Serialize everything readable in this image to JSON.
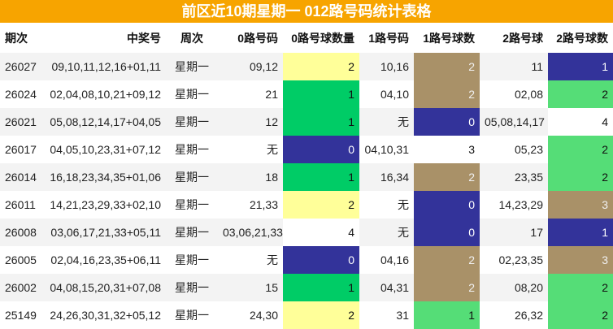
{
  "title": "前区近10期星期一 012路号码统计表格",
  "headers": [
    "期次",
    "中奖号",
    "周次",
    "0路号码",
    "0路号球数量",
    "1路号码",
    "1路号球数",
    "2路号球",
    "2路号球数"
  ],
  "rows": [
    [
      "26027",
      "09,10,11,12,16+01,11",
      "星期一",
      "09,12",
      "2",
      "10,16",
      "2",
      "11",
      "1"
    ],
    [
      "26024",
      "02,04,08,10,21+09,12",
      "星期一",
      "21",
      "1",
      "04,10",
      "2",
      "02,08",
      "2"
    ],
    [
      "26021",
      "05,08,12,14,17+04,05",
      "星期一",
      "12",
      "1",
      "无",
      "0",
      "05,08,14,17",
      "4"
    ],
    [
      "26017",
      "04,05,10,23,31+07,12",
      "星期一",
      "无",
      "0",
      "04,10,31",
      "3",
      "05,23",
      "2"
    ],
    [
      "26014",
      "16,18,23,34,35+01,06",
      "星期一",
      "18",
      "1",
      "16,34",
      "2",
      "23,35",
      "2"
    ],
    [
      "26011",
      "14,21,23,29,33+02,10",
      "星期一",
      "21,33",
      "2",
      "无",
      "0",
      "14,23,29",
      "3"
    ],
    [
      "26008",
      "03,06,17,21,33+05,11",
      "星期一",
      "03,06,21,33",
      "4",
      "无",
      "0",
      "17",
      "1"
    ],
    [
      "26005",
      "02,04,16,23,35+06,11",
      "星期一",
      "无",
      "0",
      "04,16",
      "2",
      "02,23,35",
      "3"
    ],
    [
      "26002",
      "04,08,15,20,31+07,08",
      "星期一",
      "15",
      "1",
      "04,31",
      "2",
      "08,20",
      "2"
    ],
    [
      "25149",
      "24,26,30,31,32+05,12",
      "星期一",
      "24,30",
      "2",
      "31",
      "1",
      "26,32",
      "2"
    ]
  ],
  "colors": {
    "title_bg": "#f7a400",
    "navy": "#33339a",
    "green": "#00cc66",
    "light_green": "#55dd77",
    "yellow": "#ffff99",
    "tan": "#a99168"
  }
}
